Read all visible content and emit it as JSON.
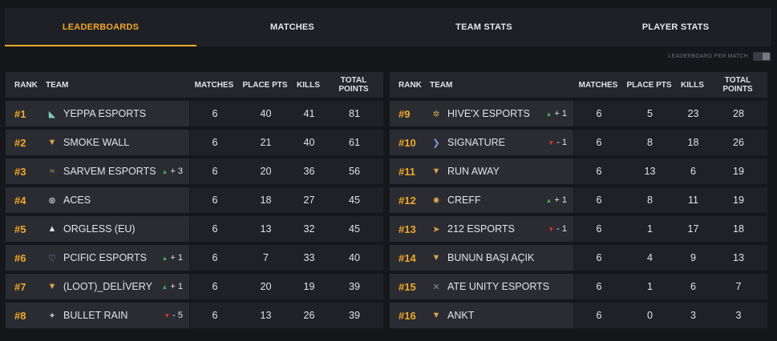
{
  "tabs": [
    {
      "label": "LEADERBOARDS",
      "active": true
    },
    {
      "label": "MATCHES",
      "active": false
    },
    {
      "label": "TEAM STATS",
      "active": false
    },
    {
      "label": "PLAYER STATS",
      "active": false
    }
  ],
  "toggle": {
    "label": "LEADERBOARD PER MATCH",
    "on": false
  },
  "columns": {
    "rank": "RANK",
    "team": "TEAM",
    "matches": "MATCHES",
    "place_pts": "PLACE PTS",
    "kills": "KILLS",
    "total": "TOTAL POINTS"
  },
  "colors": {
    "accent": "#f2a829",
    "up": "#37b24d",
    "down": "#e03131"
  },
  "left_rows": [
    {
      "rank": "#1",
      "team": "YEPPA ESPORTS",
      "icon": "wolf-logo-icon",
      "change": "",
      "dir": "",
      "matches": "6",
      "place_pts": "40",
      "kills": "41",
      "total": "81"
    },
    {
      "rank": "#2",
      "team": "SMOKE WALL",
      "icon": "shield-logo-icon",
      "change": "",
      "dir": "",
      "matches": "6",
      "place_pts": "21",
      "kills": "40",
      "total": "61"
    },
    {
      "rank": "#3",
      "team": "SARVEM ESPORTS",
      "icon": "wings-logo-icon",
      "change": "+ 3",
      "dir": "up",
      "matches": "6",
      "place_pts": "20",
      "kills": "36",
      "total": "56"
    },
    {
      "rank": "#4",
      "team": "ACES",
      "icon": "emblem-logo-icon",
      "change": "",
      "dir": "",
      "matches": "6",
      "place_pts": "18",
      "kills": "27",
      "total": "45"
    },
    {
      "rank": "#5",
      "team": "ORGLESS (EU)",
      "icon": "peak-logo-icon",
      "change": "",
      "dir": "",
      "matches": "6",
      "place_pts": "13",
      "kills": "32",
      "total": "45"
    },
    {
      "rank": "#6",
      "team": "PCIFIC ESPORTS",
      "icon": "wave-logo-icon",
      "change": "+ 1",
      "dir": "up",
      "matches": "6",
      "place_pts": "7",
      "kills": "33",
      "total": "40"
    },
    {
      "rank": "#7",
      "team": "(LOOT)_DELİVERY",
      "icon": "shield-logo-icon",
      "change": "+ 1",
      "dir": "up",
      "matches": "6",
      "place_pts": "20",
      "kills": "19",
      "total": "39"
    },
    {
      "rank": "#8",
      "team": "BULLET RAIN",
      "icon": "bird-logo-icon",
      "change": "- 5",
      "dir": "down",
      "matches": "6",
      "place_pts": "13",
      "kills": "26",
      "total": "39"
    }
  ],
  "right_rows": [
    {
      "rank": "#9",
      "team": "HIVE'X ESPORTS",
      "icon": "bee-logo-icon",
      "change": "+ 1",
      "dir": "up",
      "matches": "6",
      "place_pts": "5",
      "kills": "23",
      "total": "28"
    },
    {
      "rank": "#10",
      "team": "SIGNATURE",
      "icon": "chevron-logo-icon",
      "change": "- 1",
      "dir": "down",
      "matches": "6",
      "place_pts": "8",
      "kills": "18",
      "total": "26"
    },
    {
      "rank": "#11",
      "team": "RUN AWAY",
      "icon": "shield-logo-icon",
      "change": "",
      "dir": "",
      "matches": "6",
      "place_pts": "13",
      "kills": "6",
      "total": "19"
    },
    {
      "rank": "#12",
      "team": "CREFF",
      "icon": "flame-logo-icon",
      "change": "+ 1",
      "dir": "up",
      "matches": "6",
      "place_pts": "8",
      "kills": "11",
      "total": "19"
    },
    {
      "rank": "#13",
      "team": "212 ESPORTS",
      "icon": "dart-logo-icon",
      "change": "- 1",
      "dir": "down",
      "matches": "6",
      "place_pts": "1",
      "kills": "17",
      "total": "18"
    },
    {
      "rank": "#14",
      "team": "BUNUN BAŞI AÇIK",
      "icon": "shield-logo-icon",
      "change": "",
      "dir": "",
      "matches": "6",
      "place_pts": "4",
      "kills": "9",
      "total": "13"
    },
    {
      "rank": "#15",
      "team": "ATE UNITY ESPORTS",
      "icon": "x-logo-icon",
      "change": "",
      "dir": "",
      "matches": "6",
      "place_pts": "1",
      "kills": "6",
      "total": "7"
    },
    {
      "rank": "#16",
      "team": "ANKT",
      "icon": "shield-logo-icon",
      "change": "",
      "dir": "",
      "matches": "6",
      "place_pts": "0",
      "kills": "3",
      "total": "3"
    }
  ]
}
